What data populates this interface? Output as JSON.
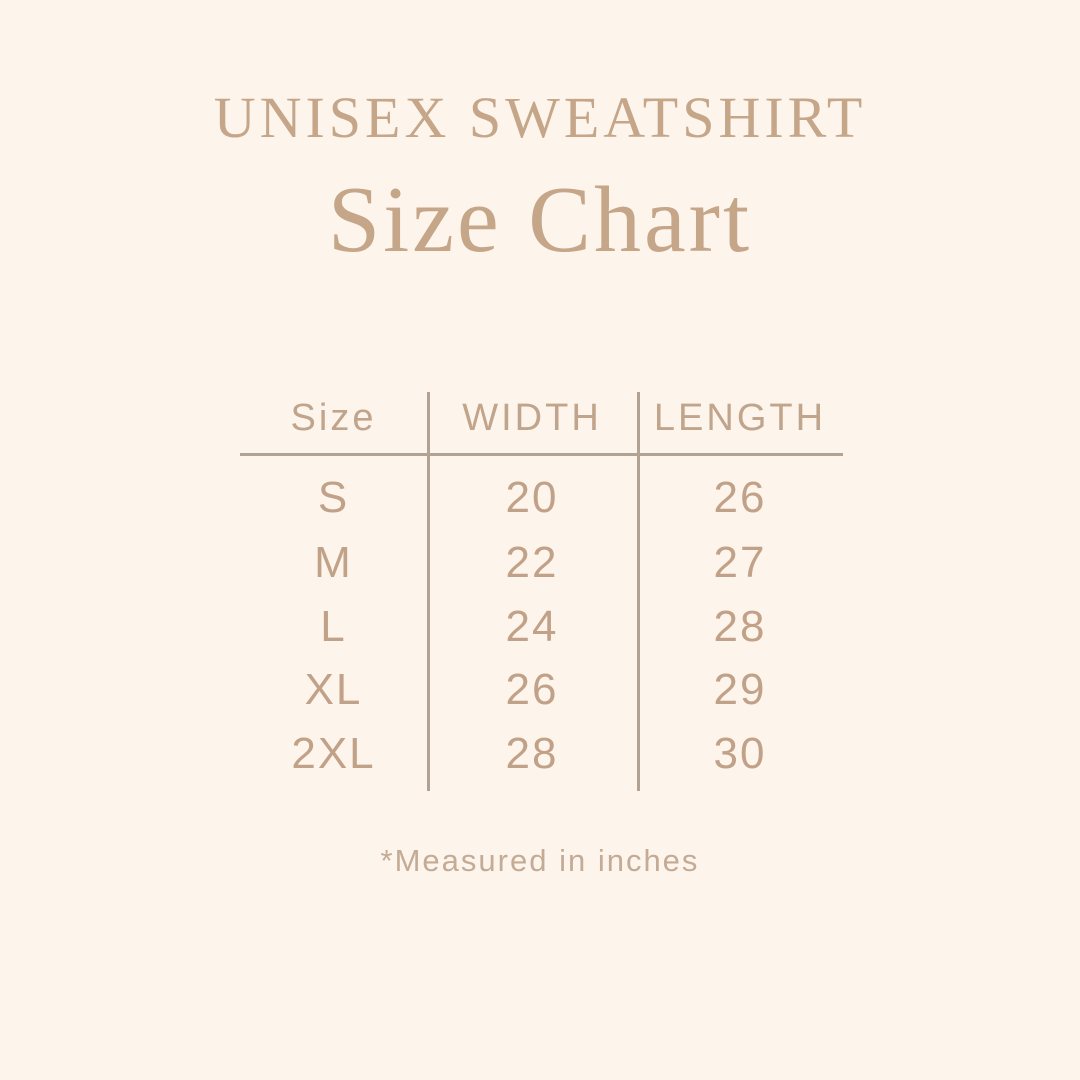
{
  "page": {
    "background_color": "#fdf4ec",
    "accent_color": "#c5a689",
    "line_color": "#b2a294"
  },
  "header": {
    "subtitle": "UNISEX SWEATSHIRT",
    "title": "Size Chart"
  },
  "table": {
    "columns": {
      "size": "Size",
      "width": "WIDTH",
      "length": "LENGTH"
    },
    "rows": [
      {
        "size": "S",
        "width": "20",
        "length": "26"
      },
      {
        "size": "M",
        "width": "22",
        "length": "27"
      },
      {
        "size": "L",
        "width": "24",
        "length": "28"
      },
      {
        "size": "XL",
        "width": "26",
        "length": "29"
      },
      {
        "size": "2XL",
        "width": "28",
        "length": "30"
      }
    ]
  },
  "footnote": "*Measured in inches",
  "chart_data": {
    "type": "table",
    "title": "UNISEX SWEATSHIRT Size Chart",
    "columns": [
      "Size",
      "WIDTH",
      "LENGTH"
    ],
    "rows": [
      [
        "S",
        20,
        26
      ],
      [
        "M",
        22,
        27
      ],
      [
        "L",
        24,
        28
      ],
      [
        "XL",
        26,
        29
      ],
      [
        "2XL",
        28,
        30
      ]
    ],
    "units": "inches",
    "note": "*Measured in inches"
  }
}
